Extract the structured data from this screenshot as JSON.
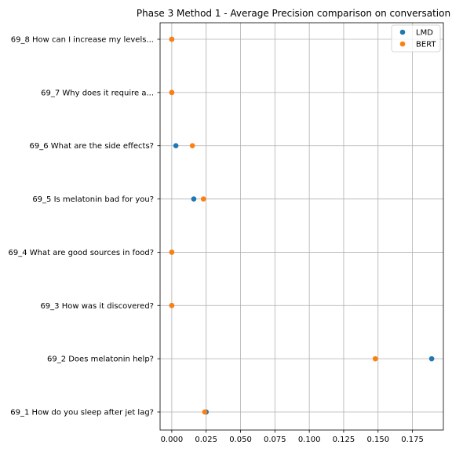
{
  "chart_data": {
    "type": "scatter",
    "title": "Phase 3 Method 1 - Average Precision comparison on conversation",
    "xlabel": "",
    "ylabel": "",
    "xlim": [
      -0.0085,
      0.1975
    ],
    "x_ticks": [
      "0.000",
      "0.025",
      "0.050",
      "0.075",
      "0.100",
      "0.125",
      "0.150",
      "0.175"
    ],
    "x_tick_values": [
      0,
      0.025,
      0.05,
      0.075,
      0.1,
      0.125,
      0.15,
      0.175
    ],
    "categories": [
      "69_1 How do you sleep after jet lag?",
      "69_2 Does melatonin help?",
      "69_3 How was it discovered?",
      "69_4 What are good sources in food?",
      "69_5 Is melatonin bad for you?",
      "69_6 What are the side effects?",
      "69_7 Why does it require a...",
      "69_8 How can I increase my levels..."
    ],
    "grid": true,
    "legend_position": "top-right",
    "series": [
      {
        "name": "LMD",
        "color": "#1f77b4",
        "values": [
          0.025,
          0.189,
          0.0,
          0.0,
          0.016,
          0.003,
          0.0,
          0.0
        ]
      },
      {
        "name": "BERT",
        "color": "#ff7f0e",
        "values": [
          0.024,
          0.148,
          0.0,
          0.0,
          0.023,
          0.015,
          0.0,
          0.0
        ]
      }
    ]
  }
}
